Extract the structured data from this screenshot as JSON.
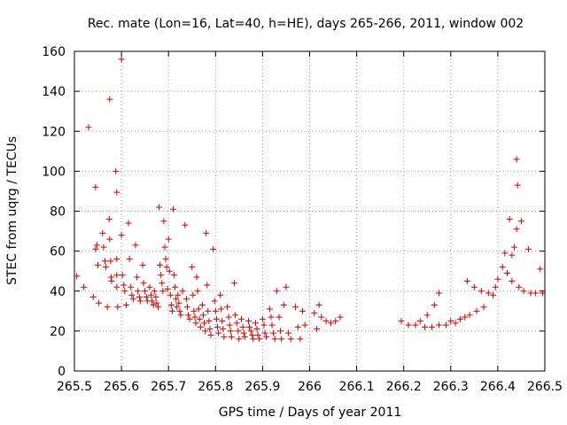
{
  "chart_data": {
    "type": "scatter",
    "title": "Rec. mate (Lon=16, Lat=40, h=HE), days 265-266, 2011, window 002",
    "xlabel": "GPS time / Days of year 2011",
    "ylabel": "STEC from uqrg / TECUs",
    "xlim": [
      265.5,
      266.5
    ],
    "ylim": [
      0,
      160
    ],
    "x_ticks": [
      "265.5",
      "265.6",
      "265.7",
      "265.8",
      "265.9",
      "266",
      "266.1",
      "266.2",
      "266.3",
      "266.4",
      "266.5"
    ],
    "y_ticks": [
      "0",
      "20",
      "40",
      "60",
      "80",
      "100",
      "120",
      "140",
      "160"
    ],
    "x_tick_values": [
      265.5,
      265.6,
      265.7,
      265.8,
      265.9,
      266.0,
      266.1,
      266.2,
      266.3,
      266.4,
      266.5
    ],
    "y_tick_values": [
      0,
      20,
      40,
      60,
      80,
      100,
      120,
      140,
      160
    ],
    "grid": true,
    "grid_style": "dotted",
    "marker": "plus",
    "marker_color": "#cc0000",
    "series": [
      {
        "points": [
          [
            265.505,
            47.5
          ],
          [
            265.52,
            42
          ],
          [
            265.53,
            122
          ],
          [
            265.54,
            37
          ],
          [
            265.545,
            92
          ],
          [
            265.545,
            61
          ],
          [
            265.548,
            63
          ],
          [
            265.55,
            53
          ],
          [
            265.552,
            34
          ],
          [
            265.56,
            69
          ],
          [
            265.562,
            62
          ],
          [
            265.565,
            55
          ],
          [
            265.567,
            52
          ],
          [
            265.57,
            32
          ],
          [
            265.575,
            136
          ],
          [
            265.574,
            76
          ],
          [
            265.575,
            66
          ],
          [
            265.577,
            55
          ],
          [
            265.578,
            47
          ],
          [
            265.579,
            45
          ],
          [
            265.588,
            100
          ],
          [
            265.59,
            89.5
          ],
          [
            265.59,
            56
          ],
          [
            265.59,
            48
          ],
          [
            265.59,
            42
          ],
          [
            265.592,
            32
          ],
          [
            265.6,
            156
          ],
          [
            265.6,
            68
          ],
          [
            265.602,
            48
          ],
          [
            265.605,
            43
          ],
          [
            265.607,
            40
          ],
          [
            265.61,
            33
          ],
          [
            265.615,
            74
          ],
          [
            265.617,
            56
          ],
          [
            265.62,
            42
          ],
          [
            265.622,
            38
          ],
          [
            265.625,
            36
          ],
          [
            265.63,
            63
          ],
          [
            265.633,
            47
          ],
          [
            265.635,
            40
          ],
          [
            265.638,
            37
          ],
          [
            265.64,
            35
          ],
          [
            265.645,
            53
          ],
          [
            265.647,
            44
          ],
          [
            265.65,
            40
          ],
          [
            265.653,
            37
          ],
          [
            265.655,
            35
          ],
          [
            265.66,
            42
          ],
          [
            265.663,
            38
          ],
          [
            265.665,
            35
          ],
          [
            265.668,
            33
          ],
          [
            265.67,
            40
          ],
          [
            265.673,
            37
          ],
          [
            265.675,
            34
          ],
          [
            265.678,
            32
          ],
          [
            265.68,
            82
          ],
          [
            265.682,
            53
          ],
          [
            265.684,
            48
          ],
          [
            265.686,
            44
          ],
          [
            265.688,
            40
          ],
          [
            265.69,
            75
          ],
          [
            265.692,
            62
          ],
          [
            265.694,
            56
          ],
          [
            265.696,
            52
          ],
          [
            265.698,
            41
          ],
          [
            265.7,
            66
          ],
          [
            265.702,
            50
          ],
          [
            265.704,
            38
          ],
          [
            265.706,
            33
          ],
          [
            265.708,
            30
          ],
          [
            265.71,
            81
          ],
          [
            265.712,
            48
          ],
          [
            265.714,
            42
          ],
          [
            265.716,
            36
          ],
          [
            265.718,
            32
          ],
          [
            265.72,
            38
          ],
          [
            265.722,
            34
          ],
          [
            265.724,
            30
          ],
          [
            265.726,
            28
          ],
          [
            265.73,
            40
          ],
          [
            265.735,
            73
          ],
          [
            265.738,
            36
          ],
          [
            265.74,
            32
          ],
          [
            265.742,
            28
          ],
          [
            265.745,
            26
          ],
          [
            265.75,
            52
          ],
          [
            265.752,
            38
          ],
          [
            265.754,
            30
          ],
          [
            265.756,
            27
          ],
          [
            265.758,
            24
          ],
          [
            265.76,
            47
          ],
          [
            265.762,
            40
          ],
          [
            265.764,
            31
          ],
          [
            265.766,
            26
          ],
          [
            265.768,
            22
          ],
          [
            265.772,
            33
          ],
          [
            265.774,
            28
          ],
          [
            265.776,
            24
          ],
          [
            265.778,
            20
          ],
          [
            265.78,
            69
          ],
          [
            265.782,
            43
          ],
          [
            265.784,
            30
          ],
          [
            265.786,
            25
          ],
          [
            265.788,
            21
          ],
          [
            265.79,
            18
          ],
          [
            265.795,
            61
          ],
          [
            265.798,
            35
          ],
          [
            265.8,
            30
          ],
          [
            265.802,
            26
          ],
          [
            265.804,
            22
          ],
          [
            265.806,
            19
          ],
          [
            265.81,
            38
          ],
          [
            265.812,
            31
          ],
          [
            265.814,
            25
          ],
          [
            265.816,
            21
          ],
          [
            265.818,
            17
          ],
          [
            265.825,
            32
          ],
          [
            265.828,
            27
          ],
          [
            265.83,
            23
          ],
          [
            265.832,
            20
          ],
          [
            265.834,
            17
          ],
          [
            265.84,
            44
          ],
          [
            265.842,
            28
          ],
          [
            265.845,
            24
          ],
          [
            265.848,
            20
          ],
          [
            265.85,
            16
          ],
          [
            265.855,
            26
          ],
          [
            265.858,
            22
          ],
          [
            265.86,
            19
          ],
          [
            265.862,
            17
          ],
          [
            265.87,
            25
          ],
          [
            265.872,
            22
          ],
          [
            265.875,
            20
          ],
          [
            265.878,
            18
          ],
          [
            265.88,
            16
          ],
          [
            265.885,
            24
          ],
          [
            265.888,
            21
          ],
          [
            265.89,
            18
          ],
          [
            265.893,
            16
          ],
          [
            265.9,
            26
          ],
          [
            265.903,
            23
          ],
          [
            265.905,
            19
          ],
          [
            265.908,
            17
          ],
          [
            265.915,
            31
          ],
          [
            265.918,
            27
          ],
          [
            265.92,
            23
          ],
          [
            265.923,
            19
          ],
          [
            265.926,
            16
          ],
          [
            265.93,
            40
          ],
          [
            265.935,
            27
          ],
          [
            265.938,
            20
          ],
          [
            265.94,
            16
          ],
          [
            265.945,
            33
          ],
          [
            265.95,
            42
          ],
          [
            265.955,
            19
          ],
          [
            265.96,
            16
          ],
          [
            265.97,
            32
          ],
          [
            265.975,
            22
          ],
          [
            265.98,
            16
          ],
          [
            265.985,
            30
          ],
          [
            265.99,
            23
          ],
          [
            266.01,
            29
          ],
          [
            266.015,
            21
          ],
          [
            266.02,
            33
          ],
          [
            266.025,
            27
          ],
          [
            266.035,
            25
          ],
          [
            266.045,
            24
          ],
          [
            266.055,
            25
          ],
          [
            266.065,
            27
          ],
          [
            266.195,
            25
          ],
          [
            266.21,
            23
          ],
          [
            266.225,
            23
          ],
          [
            266.235,
            25
          ],
          [
            266.245,
            22
          ],
          [
            266.25,
            28
          ],
          [
            266.26,
            22
          ],
          [
            266.265,
            33
          ],
          [
            266.275,
            23
          ],
          [
            266.275,
            39
          ],
          [
            266.29,
            23
          ],
          [
            266.3,
            25
          ],
          [
            266.31,
            24
          ],
          [
            266.32,
            26
          ],
          [
            266.33,
            27
          ],
          [
            266.335,
            45
          ],
          [
            266.34,
            28
          ],
          [
            266.35,
            42
          ],
          [
            266.355,
            30
          ],
          [
            266.365,
            40
          ],
          [
            266.37,
            32
          ],
          [
            266.38,
            39
          ],
          [
            266.39,
            38
          ],
          [
            266.395,
            42
          ],
          [
            266.4,
            46
          ],
          [
            266.41,
            52
          ],
          [
            266.415,
            59
          ],
          [
            266.42,
            49
          ],
          [
            266.425,
            76
          ],
          [
            266.43,
            58
          ],
          [
            266.43,
            45
          ],
          [
            266.435,
            62
          ],
          [
            266.44,
            71
          ],
          [
            266.44,
            106
          ],
          [
            266.442,
            93
          ],
          [
            266.445,
            42
          ],
          [
            266.45,
            75
          ],
          [
            266.455,
            40
          ],
          [
            266.465,
            61
          ],
          [
            266.47,
            39
          ],
          [
            266.48,
            39
          ],
          [
            266.49,
            51
          ],
          [
            266.495,
            39
          ]
        ]
      }
    ]
  }
}
